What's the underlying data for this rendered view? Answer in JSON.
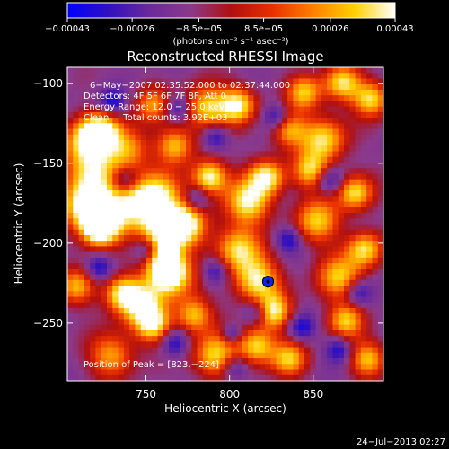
{
  "chart_data": {
    "type": "heatmap",
    "title": "Reconstructed RHESSI Image",
    "xlabel": "Heliocentric X (arcsec)",
    "ylabel": "Heliocentric Y (arcsec)",
    "xlim": [
      703,
      892
    ],
    "ylim": [
      -286,
      -90
    ],
    "x_ticks": [
      750,
      800,
      850
    ],
    "x_tick_labels": [
      "750",
      "800",
      "850"
    ],
    "y_ticks": [
      -100,
      -150,
      -200,
      -250
    ],
    "y_tick_labels": [
      "−100",
      "−150",
      "−200",
      "−250"
    ],
    "colorbar": {
      "range": [
        -0.00043,
        0.00043
      ],
      "tick_values": [
        -0.00043,
        -0.00026,
        -8.5e-05,
        8.5e-05,
        0.00026,
        0.00043
      ],
      "tick_labels": [
        "−0.00043",
        "−0.00026",
        "−8.5e−05",
        "8.5e−05",
        "0.00026",
        "0.00043"
      ],
      "unit_label": "(photons cm⁻² s⁻¹ asec⁻²)",
      "colors": [
        "#0000ff",
        "#3010c0",
        "#6a2a9a",
        "#8a3a8c",
        "#b01010",
        "#e83000",
        "#ff8000",
        "#ffd000",
        "#ffffff"
      ]
    },
    "annotations": [
      "6−May−2007 02:35:52.000 to 02:37:44.000",
      "Detectors: 4F 5F 6F 7F 8F, Att 0",
      "Energy Range: 12.0 − 25.0 keV",
      "Clean     Total counts: 3.92E+03"
    ],
    "peak": {
      "label": "Position of Peak = [823,−224]",
      "x": 823,
      "y": -224
    },
    "grid": false,
    "footer_timestamp": "24−Jul−2013 02:27"
  }
}
